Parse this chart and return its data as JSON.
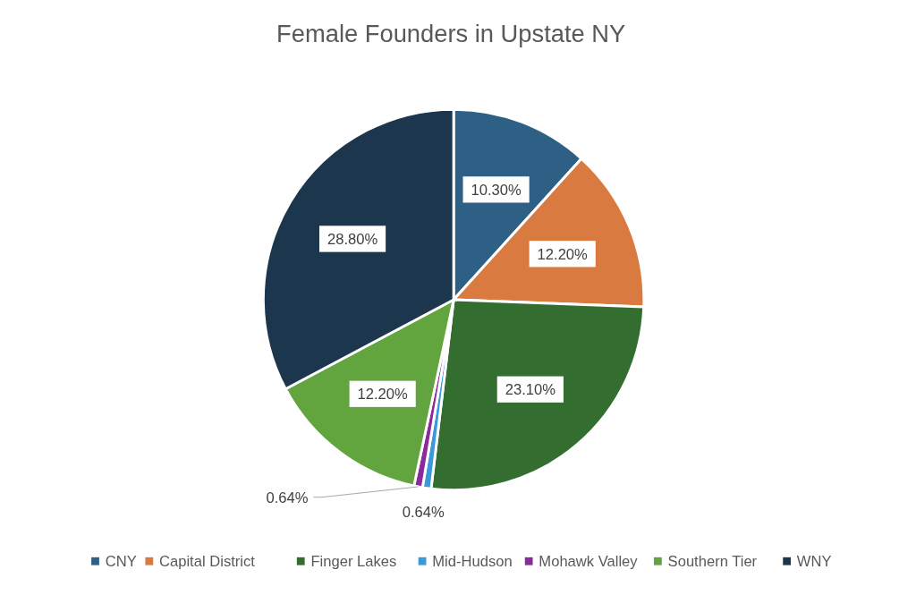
{
  "chart_data": {
    "type": "pie",
    "title": "Female Founders in Upstate NY",
    "categories": [
      "CNY",
      "Capital District",
      "Finger Lakes",
      "Mid-Hudson",
      "Mohawk Valley",
      "Southern Tier",
      "WNY"
    ],
    "values": [
      10.3,
      12.2,
      23.1,
      0.64,
      0.64,
      12.2,
      28.8
    ],
    "value_labels": [
      "10.30%",
      "12.20%",
      "23.10%",
      "0.64%",
      "0.64%",
      "12.20%",
      "28.80%"
    ],
    "colors": [
      "#2e5f84",
      "#d97a40",
      "#336e30",
      "#3a9ad9",
      "#8b2a9a",
      "#62a43e",
      "#1b364d"
    ],
    "legend": "bottom"
  }
}
